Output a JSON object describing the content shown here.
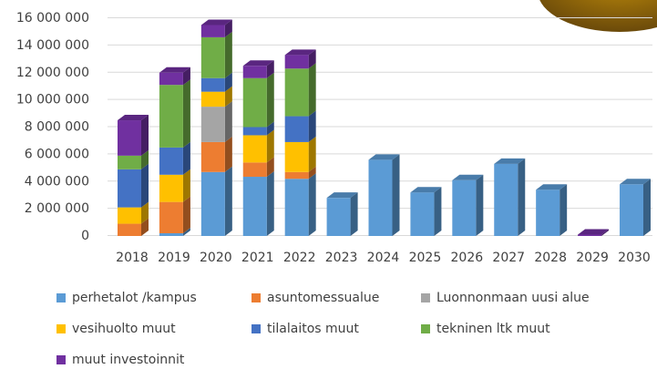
{
  "chart_data": {
    "type": "bar3d_stacked",
    "categories": [
      "2018",
      "2019",
      "2020",
      "2021",
      "2022",
      "2023",
      "2024",
      "2025",
      "2026",
      "2027",
      "2028",
      "2029",
      "2030"
    ],
    "series": [
      {
        "name": "perhetalot /kampus",
        "color": "#5b9bd5",
        "values": [
          0,
          200000,
          4700000,
          4350000,
          4200000,
          2800000,
          5600000,
          3200000,
          4100000,
          5300000,
          3400000,
          0,
          3800000
        ]
      },
      {
        "name": "asuntomessualue",
        "color": "#ed7d31",
        "values": [
          900000,
          2300000,
          2200000,
          1050000,
          500000,
          0,
          0,
          0,
          0,
          0,
          0,
          0,
          0
        ]
      },
      {
        "name": "Luonnonmaan uusi alue",
        "color": "#a5a5a5",
        "values": [
          0,
          0,
          2600000,
          0,
          0,
          0,
          0,
          0,
          0,
          0,
          0,
          0,
          0
        ]
      },
      {
        "name": "vesihuolto muut",
        "color": "#ffc000",
        "values": [
          1200000,
          2000000,
          1100000,
          2000000,
          2200000,
          0,
          0,
          0,
          0,
          0,
          0,
          0,
          0
        ]
      },
      {
        "name": "tilalaitos muut",
        "color": "#4472c4",
        "values": [
          2800000,
          2000000,
          1000000,
          600000,
          1900000,
          0,
          0,
          0,
          0,
          0,
          0,
          0,
          0
        ]
      },
      {
        "name": "tekninen ltk muut",
        "color": "#70ad47",
        "values": [
          1000000,
          4600000,
          3000000,
          3600000,
          3500000,
          0,
          0,
          0,
          0,
          0,
          0,
          0,
          0
        ]
      },
      {
        "name": "muut investoinnit",
        "color": "#7030a0",
        "values": [
          2600000,
          900000,
          900000,
          900000,
          1000000,
          0,
          0,
          0,
          0,
          0,
          0,
          100000,
          0
        ]
      }
    ],
    "ylim": [
      0,
      16000000
    ],
    "yticks": [
      0,
      {
        "value": 2000000,
        "label": "2 000 000"
      },
      {
        "value": 4000000,
        "label": "4 000 000"
      },
      {
        "value": 6000000,
        "label": "6 000 000"
      },
      {
        "value": 8000000,
        "label": "8 000 000"
      },
      {
        "value": 10000000,
        "label": "10 000 000"
      },
      {
        "value": 12000000,
        "label": "12 000 000"
      },
      {
        "value": 14000000,
        "label": "14 000 000"
      },
      {
        "value": 16000000,
        "label": "16 000 000"
      }
    ],
    "grid": true
  }
}
